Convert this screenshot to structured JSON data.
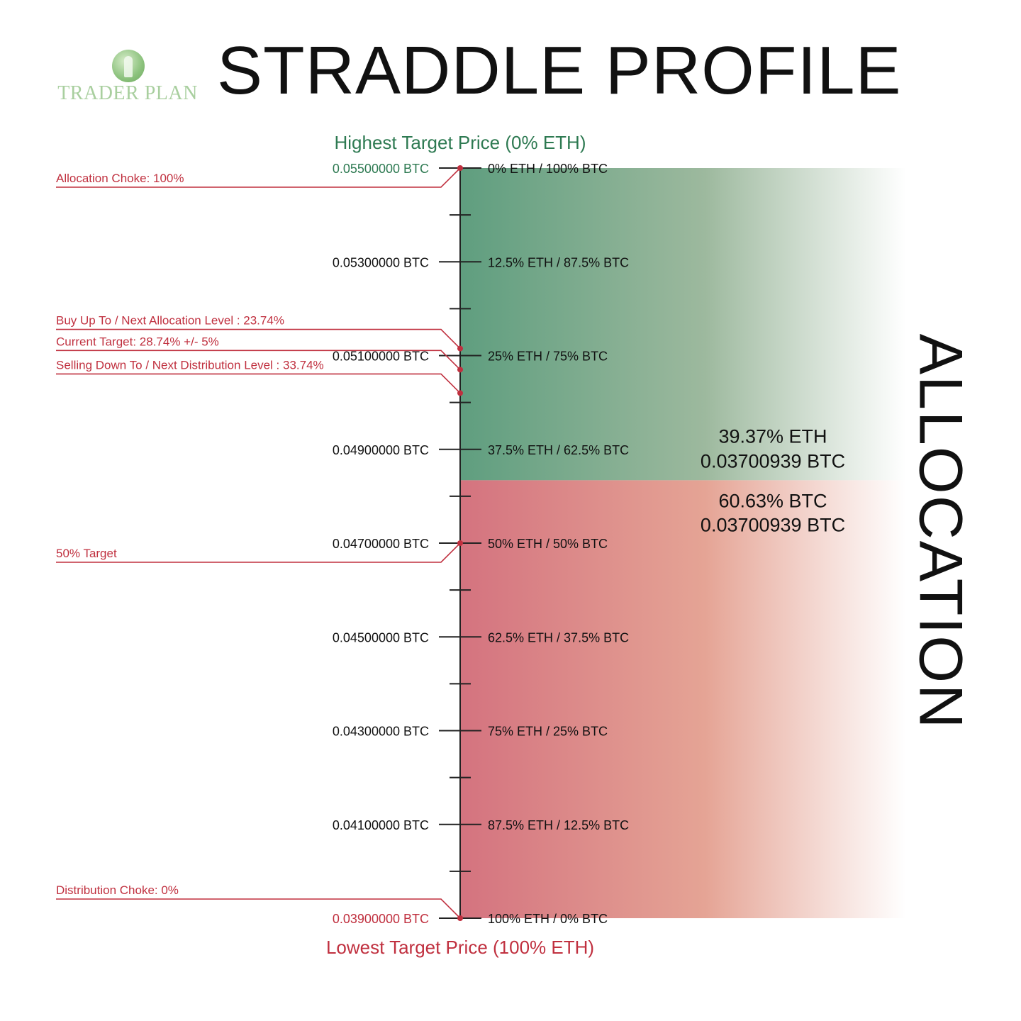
{
  "title": "STRADDLE PROFILE",
  "logo": {
    "text": "TRADER PLAN",
    "icon": "trader-plan-logo-icon"
  },
  "side_label": "ALLOCATION",
  "colors": {
    "green": "#5f9e7f",
    "green_text": "#2e7a52",
    "red": "#d4737f",
    "red_text": "#c0303f",
    "axis": "#222222"
  },
  "chart_data": {
    "type": "area",
    "top_label": "Highest Target Price (0% ETH)",
    "bottom_label": "Lowest Target Price (100% ETH)",
    "y_range": [
      0.039,
      0.055
    ],
    "levels": [
      {
        "price": 0.055,
        "price_label": "0.05500000 BTC",
        "allocation": "0% ETH / 100% BTC",
        "highlight": "green"
      },
      {
        "price": 0.053,
        "price_label": "0.05300000 BTC",
        "allocation": "12.5% ETH / 87.5% BTC",
        "highlight": ""
      },
      {
        "price": 0.051,
        "price_label": "0.05100000 BTC",
        "allocation": "25% ETH / 75% BTC",
        "highlight": ""
      },
      {
        "price": 0.049,
        "price_label": "0.04900000 BTC",
        "allocation": "37.5% ETH / 62.5% BTC",
        "highlight": ""
      },
      {
        "price": 0.047,
        "price_label": "0.04700000 BTC",
        "allocation": "50% ETH / 50% BTC",
        "highlight": ""
      },
      {
        "price": 0.045,
        "price_label": "0.04500000 BTC",
        "allocation": "62.5% ETH / 37.5% BTC",
        "highlight": ""
      },
      {
        "price": 0.043,
        "price_label": "0.04300000 BTC",
        "allocation": "75% ETH / 25% BTC",
        "highlight": ""
      },
      {
        "price": 0.041,
        "price_label": "0.04100000 BTC",
        "allocation": "87.5% ETH / 12.5% BTC",
        "highlight": ""
      },
      {
        "price": 0.039,
        "price_label": "0.03900000 BTC",
        "allocation": "100% ETH / 0% BTC",
        "highlight": "red"
      }
    ],
    "minor_ticks": [
      0.054,
      0.052,
      0.05,
      0.048,
      0.046,
      0.044,
      0.042,
      0.04
    ],
    "split_price": 0.04834,
    "eth_box": {
      "line1": "39.37% ETH",
      "line2": "0.03700939 BTC"
    },
    "btc_box": {
      "line1": "60.63% BTC",
      "line2": "0.03700939 BTC"
    },
    "annotations": [
      {
        "label": "Allocation Choke: 100%",
        "price": 0.055
      },
      {
        "label": "Buy Up To / Next Allocation Level : 23.74%",
        "price": 0.05115
      },
      {
        "label": "Current Target: 28.74% +/- 5%",
        "price": 0.0507
      },
      {
        "label": "Selling Down To / Next Distribution Level : 33.74%",
        "price": 0.0502
      },
      {
        "label": "50% Target",
        "price": 0.047
      },
      {
        "label": "Distribution Choke: 0%",
        "price": 0.039
      }
    ]
  }
}
